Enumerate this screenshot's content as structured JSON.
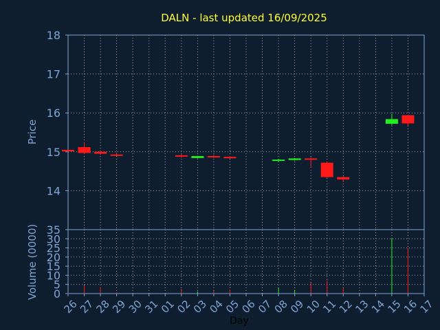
{
  "chart_data": [
    {
      "type": "candlestick",
      "title": "DALN - last updated 16/09/2025",
      "ylabel": "Price",
      "xlabel": "",
      "ylim": [
        13.0,
        18.0
      ],
      "yticks": [
        14,
        15,
        16,
        17,
        18
      ],
      "grid": true,
      "categories": [
        "26",
        "27",
        "28",
        "29",
        "30",
        "31",
        "01",
        "02",
        "03",
        "04",
        "05",
        "06",
        "07",
        "08",
        "09",
        "10",
        "11",
        "12",
        "13",
        "14",
        "15",
        "16",
        "17"
      ],
      "candles": [
        {
          "day": "26",
          "open": 15.05,
          "close": 15.01,
          "high": 15.05,
          "low": 15.0
        },
        {
          "day": "27",
          "open": 15.12,
          "close": 14.97,
          "high": 15.25,
          "low": 14.95
        },
        {
          "day": "28",
          "open": 15.0,
          "close": 14.95,
          "high": 15.02,
          "low": 14.92
        },
        {
          "day": "29",
          "open": 14.93,
          "close": 14.9,
          "high": 14.98,
          "low": 14.89
        },
        {
          "day": "02",
          "open": 14.91,
          "close": 14.88,
          "high": 14.95,
          "low": 14.85
        },
        {
          "day": "03",
          "open": 14.84,
          "close": 14.89,
          "high": 14.9,
          "low": 14.83
        },
        {
          "day": "04",
          "open": 14.89,
          "close": 14.87,
          "high": 14.93,
          "low": 14.85
        },
        {
          "day": "05",
          "open": 14.87,
          "close": 14.85,
          "high": 14.89,
          "low": 14.82
        },
        {
          "day": "08",
          "open": 14.77,
          "close": 14.8,
          "high": 14.82,
          "low": 14.74
        },
        {
          "day": "09",
          "open": 14.79,
          "close": 14.83,
          "high": 14.84,
          "low": 14.77
        },
        {
          "day": "10",
          "open": 14.83,
          "close": 14.81,
          "high": 14.86,
          "low": 14.6
        },
        {
          "day": "11",
          "open": 14.72,
          "close": 14.35,
          "high": 14.75,
          "low": 14.33
        },
        {
          "day": "12",
          "open": 14.35,
          "close": 14.29,
          "high": 14.37,
          "low": 14.22
        },
        {
          "day": "15",
          "open": 15.72,
          "close": 15.84,
          "high": 15.98,
          "low": 15.68
        },
        {
          "day": "16",
          "open": 15.94,
          "close": 15.73,
          "high": 15.95,
          "low": 15.66
        }
      ]
    },
    {
      "type": "bar",
      "xlabel": "Day",
      "ylabel": "Volume (0000)",
      "ylim": [
        0,
        35
      ],
      "yticks": [
        0,
        5,
        10,
        15,
        20,
        25,
        30,
        35
      ],
      "grid": true,
      "categories": [
        "26",
        "27",
        "28",
        "29",
        "30",
        "31",
        "01",
        "02",
        "03",
        "04",
        "05",
        "06",
        "07",
        "08",
        "09",
        "10",
        "11",
        "12",
        "13",
        "14",
        "15",
        "16",
        "17"
      ],
      "volumes": [
        {
          "day": "26",
          "value": 0.5,
          "direction": "down"
        },
        {
          "day": "27",
          "value": 4.5,
          "direction": "down"
        },
        {
          "day": "28",
          "value": 3.5,
          "direction": "down"
        },
        {
          "day": "29",
          "value": 0.8,
          "direction": "down"
        },
        {
          "day": "02",
          "value": 2.5,
          "direction": "down"
        },
        {
          "day": "03",
          "value": 1.2,
          "direction": "up"
        },
        {
          "day": "04",
          "value": 1.5,
          "direction": "down"
        },
        {
          "day": "05",
          "value": 2.0,
          "direction": "down"
        },
        {
          "day": "08",
          "value": 3.0,
          "direction": "up"
        },
        {
          "day": "09",
          "value": 2.0,
          "direction": "up"
        },
        {
          "day": "10",
          "value": 6.0,
          "direction": "down"
        },
        {
          "day": "11",
          "value": 7.0,
          "direction": "down"
        },
        {
          "day": "12",
          "value": 3.0,
          "direction": "down"
        },
        {
          "day": "15",
          "value": 30.5,
          "direction": "up"
        },
        {
          "day": "16",
          "value": 25.0,
          "direction": "down"
        }
      ]
    }
  ],
  "colors": {
    "background": "#0f1e2e",
    "axis": "#7ea4d4",
    "grid": "#9aa6b4",
    "title": "#ffff33",
    "up": "#22ee22",
    "down": "#ff1a1a",
    "xlabel": "#000000"
  }
}
